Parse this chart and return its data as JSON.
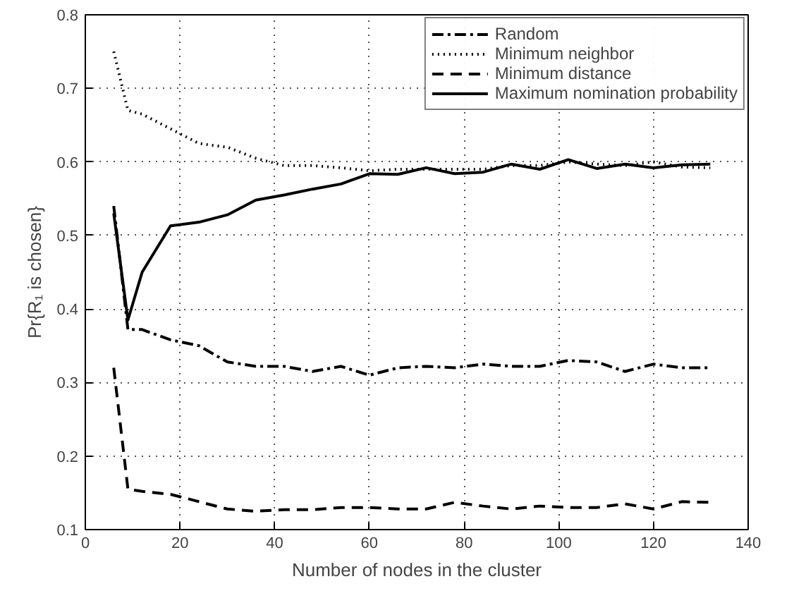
{
  "chart_data": {
    "type": "line",
    "xlabel": "Number of nodes in the cluster",
    "ylabel": "Pr{R₁ is chosen}",
    "x": [
      6,
      9,
      12,
      18,
      24,
      30,
      36,
      42,
      48,
      54,
      60,
      66,
      72,
      78,
      84,
      90,
      96,
      102,
      108,
      114,
      120,
      126,
      132
    ],
    "xlim": [
      0,
      140
    ],
    "xticks": [
      0,
      20,
      40,
      60,
      80,
      100,
      120,
      140
    ],
    "ylim": [
      0.1,
      0.8
    ],
    "yticks": [
      0.1,
      0.2,
      0.3,
      0.4,
      0.5,
      0.6,
      0.7,
      0.8
    ],
    "grid": true,
    "legend": "top right",
    "marker": "none",
    "series": [
      {
        "name": "Random",
        "color": "#000000",
        "line_style": "dashdot",
        "values": [
          0.54,
          0.372,
          0.372,
          0.358,
          0.35,
          0.328,
          0.322,
          0.322,
          0.315,
          0.322,
          0.31,
          0.32,
          0.322,
          0.32,
          0.325,
          0.322,
          0.322,
          0.33,
          0.328,
          0.315,
          0.325,
          0.32,
          0.32
        ]
      },
      {
        "name": "Minimum neighbor",
        "color": "#000000",
        "line_style": "dotted",
        "values": [
          0.75,
          0.67,
          0.665,
          0.645,
          0.625,
          0.62,
          0.605,
          0.595,
          0.595,
          0.592,
          0.588,
          0.59,
          0.59,
          0.59,
          0.59,
          0.595,
          0.595,
          0.6,
          0.597,
          0.595,
          0.6,
          0.593,
          0.592
        ]
      },
      {
        "name": "Minimum distance",
        "color": "#000000",
        "line_style": "dashed",
        "values": [
          0.32,
          0.155,
          0.152,
          0.148,
          0.138,
          0.128,
          0.125,
          0.127,
          0.127,
          0.13,
          0.13,
          0.128,
          0.128,
          0.137,
          0.132,
          0.128,
          0.132,
          0.13,
          0.13,
          0.135,
          0.128,
          0.138,
          0.137
        ]
      },
      {
        "name": "Maximum nomination probability",
        "color": "#000000",
        "line_style": "solid",
        "values": [
          0.53,
          0.385,
          0.45,
          0.513,
          0.518,
          0.528,
          0.548,
          0.555,
          0.563,
          0.57,
          0.584,
          0.583,
          0.592,
          0.584,
          0.586,
          0.597,
          0.59,
          0.603,
          0.591,
          0.597,
          0.592,
          0.596,
          0.597
        ]
      }
    ]
  }
}
